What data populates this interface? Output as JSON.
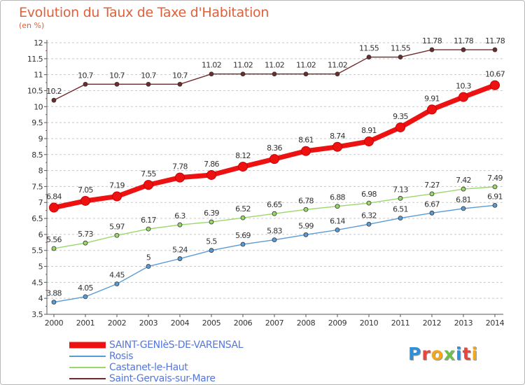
{
  "header": {
    "title": "Evolution du Taux de Taxe d'Habitation",
    "subtitle": "(en %)"
  },
  "logo": {
    "text": "Proxiti",
    "colors": [
      "#2f8fd8",
      "#e8463a",
      "#f2a818",
      "#6cc04a",
      "#2f8fd8",
      "#e8463a",
      "#f2a818"
    ]
  },
  "colors": {
    "background": "#ffffff",
    "grid": "#c8c8c8",
    "axis": "#555555",
    "title": "#e0603a",
    "legend_text": "#5577dd"
  },
  "chart_data": {
    "type": "line",
    "title": "Evolution du Taux de Taxe d'Habitation",
    "ylabel": "(en %)",
    "xlabel": "",
    "ylim": [
      3.5,
      12
    ],
    "ytick_step": 0.5,
    "ytick_labels": [
      "3.5",
      "4",
      "4.5",
      "5",
      "5.5",
      "6",
      "6.5",
      "7",
      "7.5",
      "8",
      "8.5",
      "9",
      "9.5",
      "10",
      "10.5",
      "11",
      "11.5",
      "12"
    ],
    "grid": "horizontal dashed",
    "legend_position": "bottom-left",
    "x": [
      "2000",
      "2001",
      "2002",
      "2003",
      "2004",
      "2005",
      "2006",
      "2007",
      "2008",
      "2009",
      "2010",
      "2011",
      "2012",
      "2013",
      "2014"
    ],
    "series": [
      {
        "name": "Saint-Gervais-sur-Mare",
        "color": "#6e2b2b",
        "values": [
          10.2,
          10.7,
          10.7,
          10.7,
          10.7,
          11.02,
          11.02,
          11.02,
          11.02,
          11.02,
          11.55,
          11.55,
          11.78,
          11.78,
          11.78
        ],
        "labels": [
          "10.2",
          "10.7",
          "10.7",
          "10.7",
          "10.7",
          "11.02",
          "11.02",
          "11.02",
          "11.02",
          "11.02",
          "11.55",
          "11.55",
          "11.78",
          "11.78",
          "11.78"
        ]
      },
      {
        "name": "Castanet-le-Haut",
        "color": "#9ad86a",
        "values": [
          5.56,
          5.73,
          5.97,
          6.17,
          6.3,
          6.39,
          6.52,
          6.65,
          6.78,
          6.88,
          6.98,
          7.13,
          7.27,
          7.42,
          7.49
        ],
        "labels": [
          "5.56",
          "5.73",
          "5.97",
          "6.17",
          "6.3",
          "6.39",
          "6.52",
          "6.65",
          "6.78",
          "6.88",
          "6.98",
          "7.13",
          "7.27",
          "7.42",
          "7.49"
        ]
      },
      {
        "name": "Rosis",
        "color": "#5b9bd5",
        "values": [
          3.88,
          4.05,
          4.45,
          5,
          5.24,
          5.5,
          5.69,
          5.83,
          5.99,
          6.14,
          6.32,
          6.51,
          6.67,
          6.81,
          6.91
        ],
        "labels": [
          "3.88",
          "4.05",
          "4.45",
          "5",
          "5.24",
          "5.5",
          "5.69",
          "5.83",
          "5.99",
          "6.14",
          "6.32",
          "6.51",
          "6.67",
          "6.81",
          "6.91"
        ]
      },
      {
        "name": "SAINT-GENIèS-DE-VARENSAL",
        "color": "#ee1111",
        "emphasis": true,
        "values": [
          6.84,
          7.05,
          7.19,
          7.55,
          7.78,
          7.86,
          8.12,
          8.36,
          8.61,
          8.74,
          8.91,
          9.35,
          9.91,
          10.3,
          10.67
        ],
        "labels": [
          "6.84",
          "7.05",
          "7.19",
          "7.55",
          "7.78",
          "7.86",
          "8.12",
          "8.36",
          "8.61",
          "8.74",
          "8.91",
          "9.35",
          "9.91",
          "10.3",
          "10.67"
        ]
      }
    ],
    "legend": [
      {
        "name": "SAINT-GENIèS-DE-VARENSAL",
        "color": "#ee1111",
        "thick": true
      },
      {
        "name": "Rosis",
        "color": "#5b9bd5",
        "thick": false
      },
      {
        "name": "Castanet-le-Haut",
        "color": "#9ad86a",
        "thick": false
      },
      {
        "name": "Saint-Gervais-sur-Mare",
        "color": "#6e2b2b",
        "thick": false
      }
    ]
  }
}
